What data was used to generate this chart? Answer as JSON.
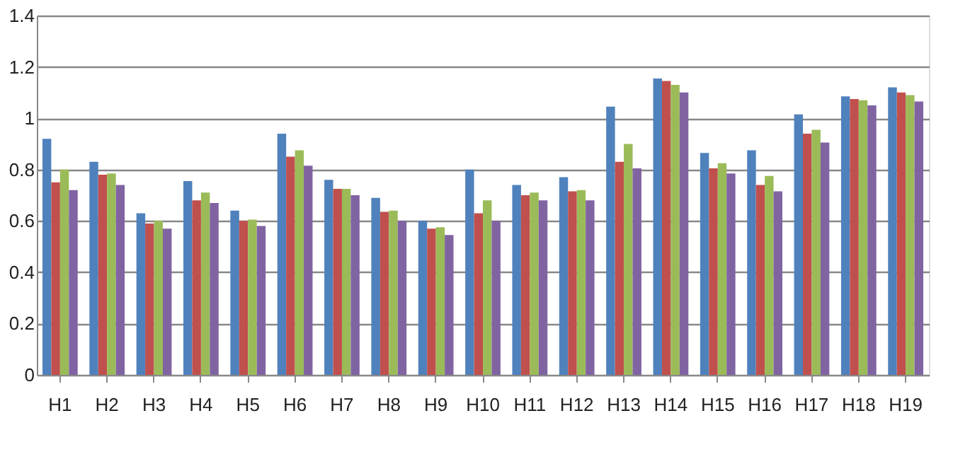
{
  "chart_data": {
    "type": "bar",
    "categories": [
      "H1",
      "H2",
      "H3",
      "H4",
      "H5",
      "H6",
      "H7",
      "H8",
      "H9",
      "H10",
      "H11",
      "H12",
      "H13",
      "H14",
      "H15",
      "H16",
      "H17",
      "H18",
      "H19"
    ],
    "series": [
      {
        "color": "#4f81bd",
        "values": [
          0.92,
          0.83,
          0.63,
          0.755,
          0.64,
          0.94,
          0.76,
          0.69,
          0.6,
          0.8,
          0.74,
          0.77,
          1.045,
          1.155,
          0.865,
          0.875,
          1.015,
          1.085,
          1.12
        ]
      },
      {
        "color": "#c0504d",
        "values": [
          0.75,
          0.78,
          0.59,
          0.68,
          0.6,
          0.85,
          0.725,
          0.635,
          0.57,
          0.63,
          0.7,
          0.715,
          0.83,
          1.145,
          0.805,
          0.74,
          0.94,
          1.075,
          1.1
        ]
      },
      {
        "color": "#9bbb59",
        "values": [
          0.8,
          0.785,
          0.6,
          0.71,
          0.605,
          0.875,
          0.725,
          0.64,
          0.575,
          0.68,
          0.71,
          0.72,
          0.9,
          1.13,
          0.825,
          0.775,
          0.955,
          1.07,
          1.09
        ]
      },
      {
        "color": "#8064a2",
        "values": [
          0.72,
          0.74,
          0.57,
          0.67,
          0.58,
          0.815,
          0.7,
          0.6,
          0.545,
          0.6,
          0.68,
          0.68,
          0.805,
          1.1,
          0.785,
          0.715,
          0.905,
          1.05,
          1.065
        ]
      }
    ],
    "ylim": [
      0,
      1.4
    ],
    "yticks": [
      0,
      0.2,
      0.4,
      0.6,
      0.8,
      1,
      1.2,
      1.4
    ],
    "grid": "y",
    "legend": false
  }
}
